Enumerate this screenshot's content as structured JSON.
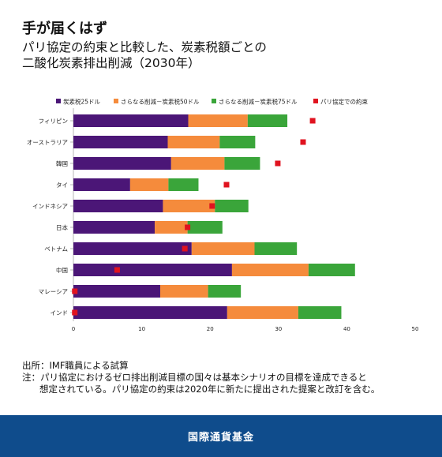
{
  "header": {
    "title": "手が届くはず",
    "subtitle_lines": [
      "パリ協定の約束と比較した、炭素税額ごとの",
      "二酸化炭素排出削減（2030年）"
    ]
  },
  "notes": {
    "source": "出所：IMF職員による試算",
    "note_line1": "注：パリ協定におけるゼロ排出削減目標の国々は基本シナリオの目標を達成できると",
    "note_line2": "想定されている。パリ協定の約束は2020年に新たに提出された提案と改訂を含む。"
  },
  "footer": {
    "org_name": "国際通貨基金"
  },
  "colors": {
    "tax25": "#4b1677",
    "tax50": "#f58b3c",
    "tax75": "#3aa53a",
    "pledge": "#e0131f"
  },
  "chart_data": {
    "type": "bar",
    "orientation": "horizontal",
    "stacked": true,
    "categories": [
      "フィリピン",
      "オーストラリア",
      "韓国",
      "タイ",
      "インドネシア",
      "日本",
      "ベトナム",
      "中国",
      "マレーシア",
      "インド"
    ],
    "series": [
      {
        "name": "炭素税25ドル",
        "values": [
          16.8,
          13.8,
          14.3,
          8.3,
          13.1,
          11.9,
          17.3,
          23.2,
          12.7,
          22.5
        ]
      },
      {
        "name": "さらなる削減－炭素税50ドル",
        "values": [
          8.7,
          7.6,
          7.8,
          5.6,
          7.6,
          4.8,
          9.2,
          11.2,
          7.0,
          10.4
        ]
      },
      {
        "name": "さらなる削減－炭素税75ドル",
        "values": [
          5.8,
          5.2,
          5.2,
          4.4,
          4.9,
          5.1,
          6.2,
          6.8,
          4.8,
          6.3
        ]
      }
    ],
    "markers": {
      "name": "パリ協定での約束",
      "values": [
        35.0,
        33.6,
        29.9,
        22.4,
        20.3,
        16.7,
        16.3,
        6.4,
        0.2,
        0.2
      ]
    },
    "xlim": [
      0,
      50
    ],
    "xticks": [
      0,
      10,
      20,
      30,
      40,
      50
    ],
    "legend_position": "top",
    "grid": false
  }
}
